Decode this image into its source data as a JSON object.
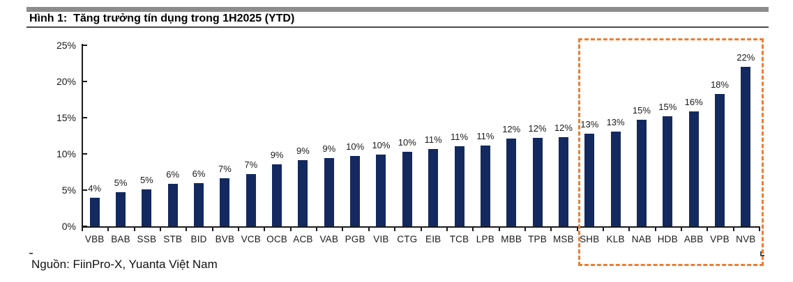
{
  "header": {
    "title": "Hình 1:  Tăng trưởng tín dụng trong 1H2025 (YTD)"
  },
  "footer": {
    "source": "Nguồn: FiinPro-X, Yuanta Việt Nam"
  },
  "colors": {
    "bar": "#13295F",
    "highlight_box": "#ED7D31",
    "header_bar": "#8C8C8C",
    "title_rule": "#4A4A4A",
    "axis": "#1A1A1A",
    "label_text": "#1A1A1A"
  },
  "chart_data": {
    "type": "bar",
    "title": "Tăng trưởng tín dụng trong 1H2025 (YTD)",
    "xlabel": "",
    "ylabel": "",
    "ylim": [
      0,
      25
    ],
    "ytick_values": [
      0,
      5,
      10,
      15,
      20,
      25
    ],
    "ytick_labels": [
      "0%",
      "5%",
      "10%",
      "15%",
      "20%",
      "25%"
    ],
    "grid": false,
    "legend": false,
    "sort_order": "ascending",
    "categories": [
      "VBB",
      "BAB",
      "SSB",
      "STB",
      "BID",
      "BVB",
      "VCB",
      "OCB",
      "ACB",
      "VAB",
      "PGB",
      "VIB",
      "CTG",
      "EIB",
      "TCB",
      "LPB",
      "MBB",
      "TPB",
      "MSB",
      "SHB",
      "KLB",
      "NAB",
      "HDB",
      "ABB",
      "VPB",
      "NVB"
    ],
    "values": [
      3.9,
      4.7,
      5.1,
      5.9,
      6.0,
      6.6,
      7.2,
      8.6,
      9.1,
      9.4,
      9.7,
      9.9,
      10.3,
      10.7,
      11.1,
      11.2,
      12.1,
      12.2,
      12.3,
      12.8,
      13.1,
      14.7,
      15.2,
      15.9,
      18.3,
      22.0
    ],
    "bar_labels": [
      "4%",
      "5%",
      "5%",
      "6%",
      "6%",
      "7%",
      "7%",
      "9%",
      "9%",
      "9%",
      "10%",
      "10%",
      "10%",
      "11%",
      "11%",
      "11%",
      "12%",
      "12%",
      "12%",
      "13%",
      "13%",
      "15%",
      "15%",
      "16%",
      "18%",
      "22%"
    ],
    "highlight": {
      "style": "dashed-box",
      "banks": [
        "SHB",
        "KLB",
        "NAB",
        "HDB",
        "ABB",
        "VPB",
        "NVB"
      ],
      "start_index": 19
    }
  }
}
